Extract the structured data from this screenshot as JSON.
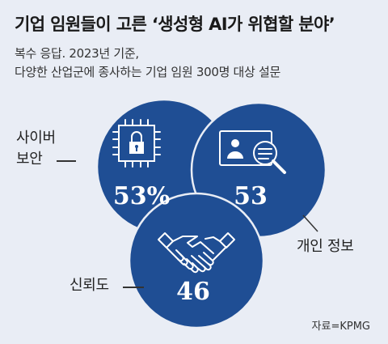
{
  "header": {
    "title": "기업 임원들이 고른 ‘생성형 AI가 위협할 분야’",
    "subtitle_line1": "복수 응답. 2023년 기준,",
    "subtitle_line2": "다양한 산업군에 종사하는 기업 임원 300명 대상 설문"
  },
  "colors": {
    "circle": "#1f4e94",
    "icon": "#ffffff",
    "background": "#e9edf5"
  },
  "chart_data": {
    "type": "venn",
    "title": "기업 임원들이 고른 ‘생성형 AI가 위협할 분야’",
    "subtitle": "복수 응답. 2023년 기준, 다양한 산업군에 종사하는 기업 임원 300명 대상 설문",
    "unit": "%",
    "items": [
      {
        "label_line1": "사이버",
        "label_line2": "보안",
        "value": 53,
        "display": "53%",
        "icon": "chip-lock-icon"
      },
      {
        "label": "개인 정보",
        "value": 53,
        "display": "53",
        "icon": "id-card-search-icon"
      },
      {
        "label": "신뢰도",
        "value": 46,
        "display": "46",
        "icon": "handshake-icon"
      }
    ]
  },
  "footer": {
    "source": "자료=KPMG"
  }
}
